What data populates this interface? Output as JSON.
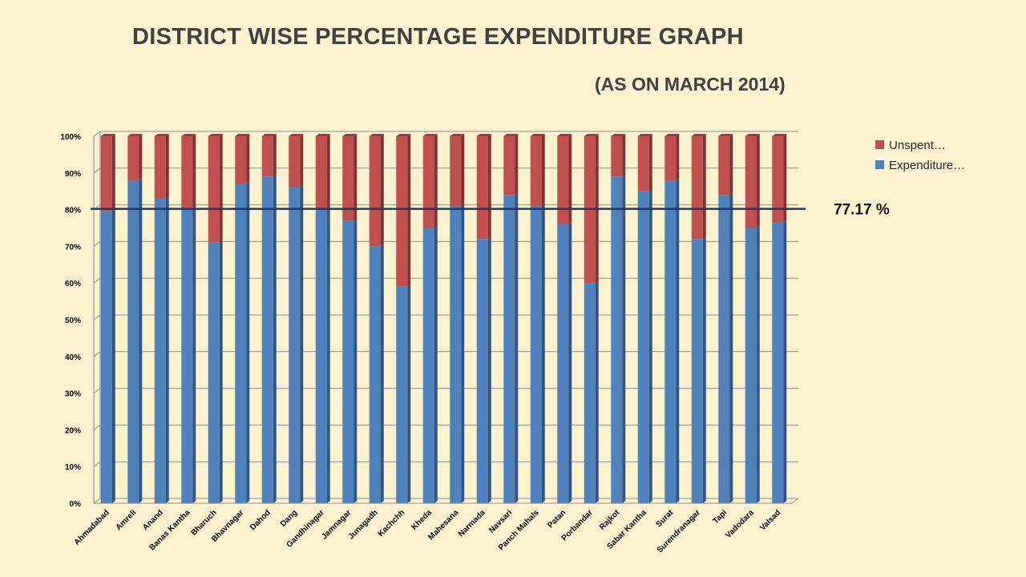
{
  "title": "DISTRICT WISE PERCENTAGE EXPENDITURE GRAPH",
  "subtitle": "(AS ON MARCH 2014)",
  "chart_data": {
    "type": "bar",
    "stacked": true,
    "percent_stacked": true,
    "categories": [
      "Ahmadabad",
      "Amreli",
      "Anand",
      "Banas Kantha",
      "Bharuch",
      "Bhavnagar",
      "Dahod",
      "Dang",
      "Gandhinagar",
      "Jamnagar",
      "Junagadh",
      "Kachchh",
      "Kheda",
      "Mahesana",
      "Narmada",
      "Navsari",
      "Panch Mahals",
      "Patan",
      "Porbandar",
      "Rajkot",
      "Sabar Kantha",
      "Surat",
      "Surendranagar",
      "Tapi",
      "Vadodara",
      "Valsad"
    ],
    "series": [
      {
        "name": "Expenditure…",
        "color": "#4f81bd",
        "values": [
          79.5,
          88,
          83,
          80,
          71,
          87,
          89,
          86,
          80,
          77,
          70,
          59,
          75,
          81,
          72,
          84,
          81,
          76,
          60,
          89,
          85,
          88,
          72,
          84,
          75,
          76.5
        ]
      },
      {
        "name": "Unspent…",
        "color": "#c0504d",
        "values": [
          20.5,
          12,
          17,
          20,
          29,
          13,
          11,
          14,
          20,
          23,
          30,
          41,
          25,
          19,
          28,
          16,
          19,
          24,
          40,
          11,
          15,
          12,
          28,
          16,
          25,
          23.5
        ]
      }
    ],
    "yticks": [
      "0%",
      "10%",
      "20%",
      "30%",
      "40%",
      "50%",
      "60%",
      "70%",
      "80%",
      "90%",
      "100%"
    ],
    "ylim": [
      0,
      100
    ],
    "grid": true,
    "legend_position": "top-right",
    "reference_line": {
      "value": 80,
      "label": "77.17 %",
      "color": "#1f3864"
    }
  }
}
